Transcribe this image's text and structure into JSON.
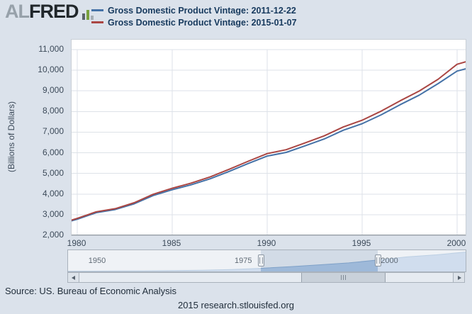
{
  "logo": {
    "al": "AL",
    "fred": "FRED"
  },
  "legend": [
    {
      "label": "Gross Domestic Product Vintage: 2011-12-22",
      "color": "#4572a7"
    },
    {
      "label": "Gross Domestic Product Vintage: 2015-01-07",
      "color": "#aa4643"
    }
  ],
  "chart_data": {
    "type": "line",
    "title": "",
    "ylabel": "(Billions of Dollars)",
    "xlabel": "",
    "xlim": [
      1979.7,
      2000.45
    ],
    "ylim": [
      2000,
      11000
    ],
    "x_ticks": [
      1980,
      1985,
      1990,
      1995,
      2000
    ],
    "y_ticks": [
      2000,
      3000,
      4000,
      5000,
      6000,
      7000,
      8000,
      9000,
      10000,
      11000
    ],
    "grid": true,
    "legend_position": "top",
    "x": [
      1979.7,
      1980,
      1981,
      1982,
      1983,
      1984,
      1985,
      1986,
      1987,
      1988,
      1989,
      1990,
      1991,
      1992,
      1993,
      1994,
      1995,
      1996,
      1997,
      1998,
      1999,
      2000,
      2000.45
    ],
    "series": [
      {
        "name": "Gross Domestic Product Vintage: 2011-12-22",
        "color": "#4572a7",
        "values": [
          2700,
          2780,
          3100,
          3250,
          3530,
          3930,
          4210,
          4450,
          4740,
          5100,
          5480,
          5840,
          6020,
          6340,
          6670,
          7090,
          7410,
          7840,
          8330,
          8790,
          9350,
          9960,
          10070
        ]
      },
      {
        "name": "Gross Domestic Product Vintage: 2015-01-07",
        "color": "#aa4643",
        "values": [
          2740,
          2820,
          3140,
          3290,
          3580,
          3990,
          4280,
          4530,
          4830,
          5200,
          5590,
          5960,
          6150,
          6480,
          6820,
          7250,
          7580,
          8020,
          8520,
          8990,
          9560,
          10290,
          10410
        ]
      }
    ]
  },
  "navigator": {
    "xlim": [
      1947,
      2015
    ],
    "ymax": 17800,
    "labels": [
      {
        "year": 1950,
        "text": "1950"
      },
      {
        "year": 1975,
        "text": "1975"
      },
      {
        "year": 2000,
        "text": "2000"
      }
    ],
    "selection": [
      1980,
      2000
    ],
    "x": [
      1947,
      1950,
      1955,
      1960,
      1965,
      1970,
      1975,
      1980,
      1985,
      1990,
      1995,
      2000,
      2005,
      2010,
      2015
    ],
    "values": [
      244,
      300,
      426,
      543,
      743,
      1073,
      1685,
      2857,
      4339,
      5963,
      7664,
      10285,
      13094,
      14964,
      17400
    ]
  },
  "footer": {
    "source": "Source: US. Bureau of Economic Analysis",
    "site": "2015 research.stlouisfed.org"
  }
}
